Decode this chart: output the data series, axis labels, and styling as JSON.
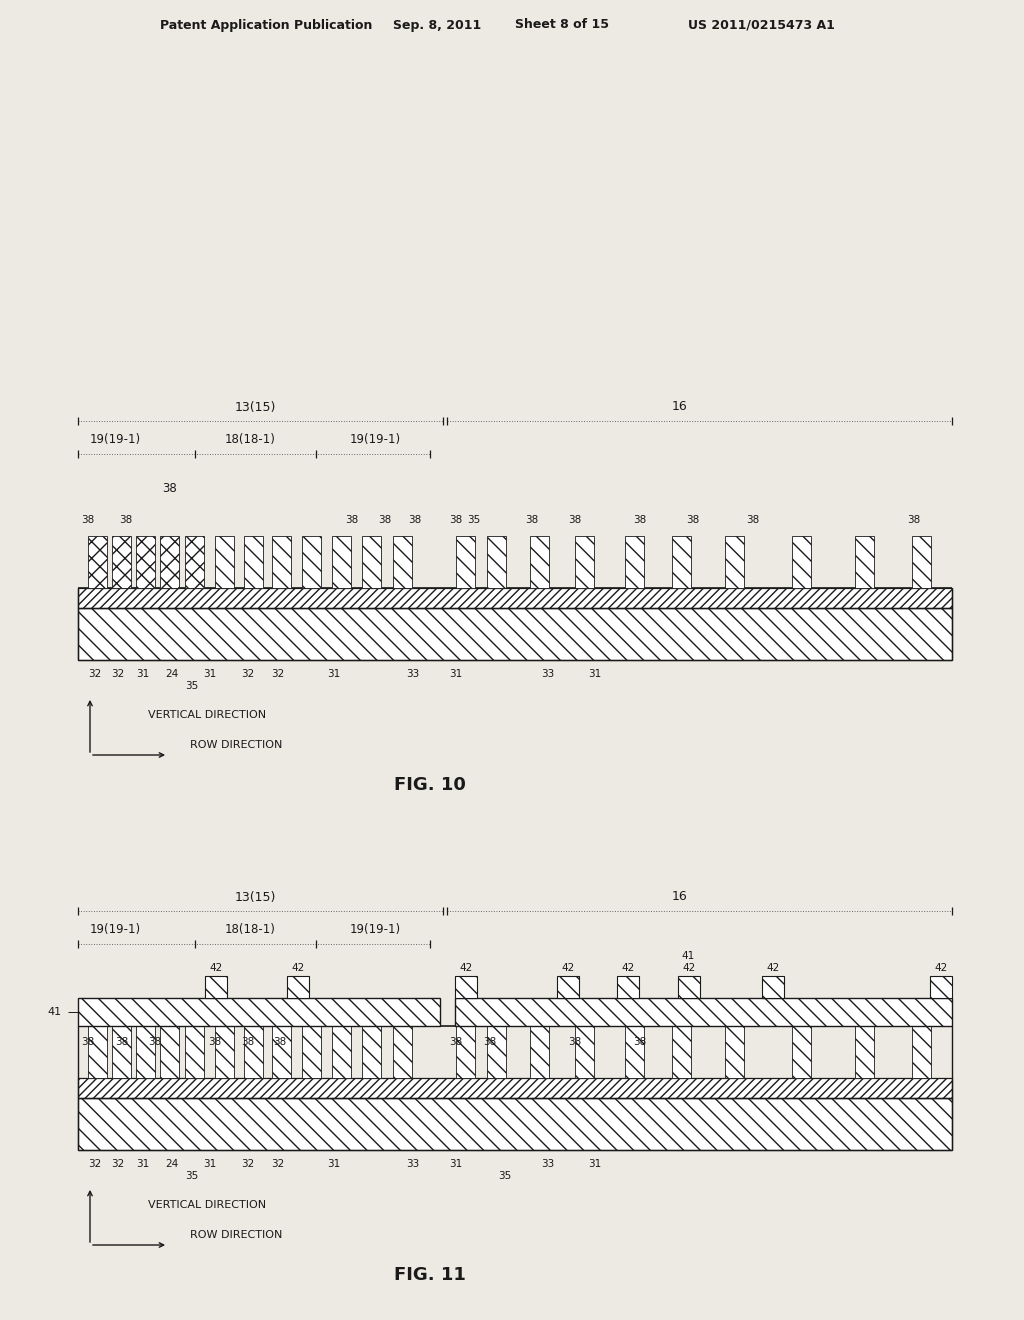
{
  "bg_color": "#ede9e3",
  "header1": "Patent Application Publication",
  "header2": "Sep. 8, 2011",
  "header3": "Sheet 8 of 15",
  "header4": "US 2011/0215473 A1",
  "fig10_label": "FIG. 10",
  "fig11_label": "FIG. 11",
  "lc": "#1a1a1a",
  "tc": "#1a1a1a",
  "wc": "#ffffff"
}
